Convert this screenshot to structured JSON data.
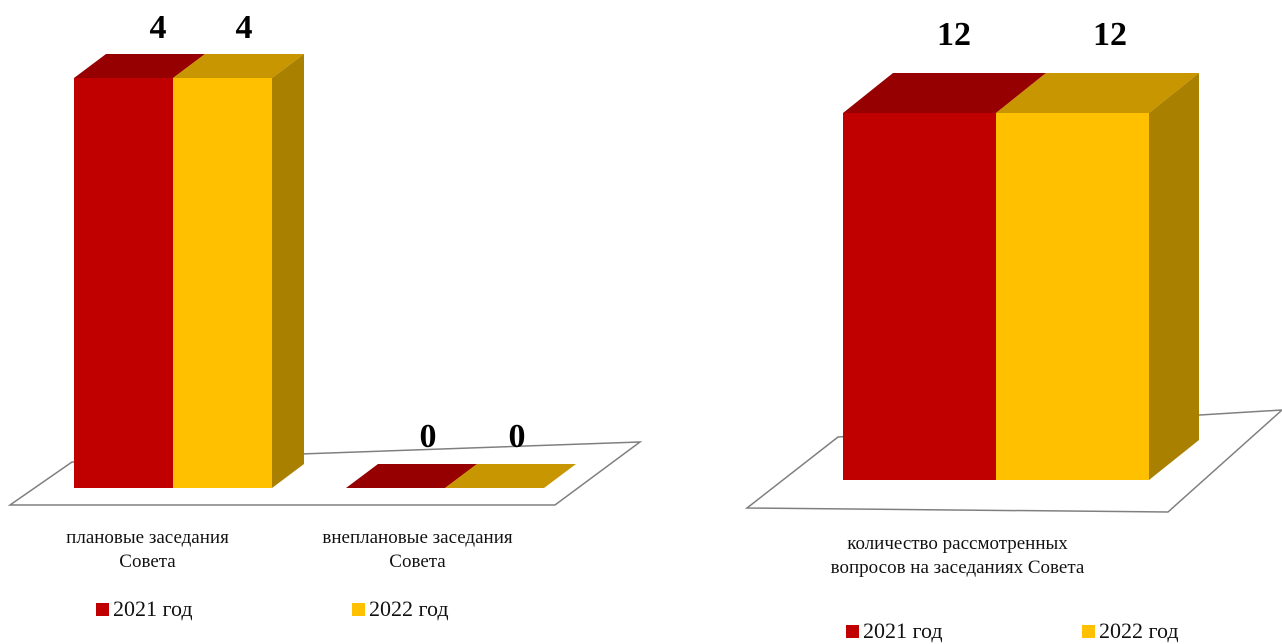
{
  "colors": {
    "2021": {
      "front": "#C00000",
      "top": "#960000",
      "side": "#8A0000"
    },
    "2022": {
      "front": "#FFC000",
      "top": "#C89600",
      "side": "#A98000"
    },
    "floor_stroke": "#7F7F7F"
  },
  "chart_data": [
    {
      "type": "bar",
      "categories": [
        "плановые заседания Совета",
        "внеплановые заседания Совета"
      ],
      "series": [
        {
          "name": "2021 год",
          "values": [
            4,
            0
          ]
        },
        {
          "name": "2022 год",
          "values": [
            4,
            0
          ]
        }
      ],
      "ylim": [
        0,
        4
      ],
      "grid": false,
      "legend_position": "bottom"
    },
    {
      "type": "bar",
      "categories": [
        "количество рассмотренных вопросов на заседаниях Совета"
      ],
      "series": [
        {
          "name": "2021 год",
          "values": [
            12
          ]
        },
        {
          "name": "2022 год",
          "values": [
            12
          ]
        }
      ],
      "ylim": [
        0,
        12
      ],
      "grid": false,
      "legend_position": "bottom"
    }
  ],
  "labels": {
    "left": {
      "cat1_line1": "плановые заседания",
      "cat1_line2": "Совета",
      "cat2_line1": "внеплановые заседания",
      "cat2_line2": "Совета"
    },
    "right": {
      "cat1_line1": "количество рассмотренных",
      "cat1_line2": "вопросов на заседаниях Совета"
    },
    "legend": {
      "s2021": "2021 год",
      "s2022": "2022 год"
    }
  }
}
